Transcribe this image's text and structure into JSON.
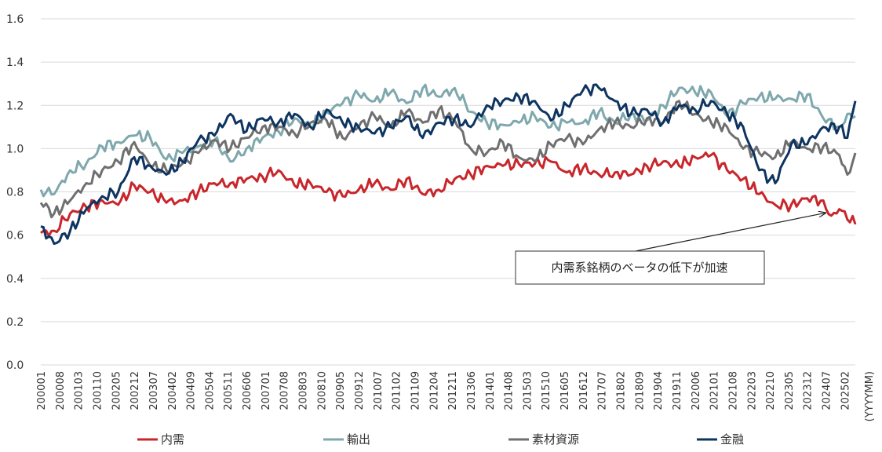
{
  "chart_data": {
    "type": "line",
    "title": "",
    "xlabel": "",
    "ylabel": "",
    "x_unit": "(YYYYMM)",
    "ylim": [
      0,
      1.6
    ],
    "yticks": [
      0.0,
      0.2,
      0.4,
      0.6,
      0.8,
      1.0,
      1.2,
      1.4,
      1.6
    ],
    "ytick_labels": [
      "0.0",
      "0.2",
      "0.4",
      "0.6",
      "0.8",
      "1.0",
      "1.2",
      "1.4",
      "1.6"
    ],
    "grid": true,
    "legend_position": "bottom",
    "x_start": "200001",
    "x_end": "202506",
    "xtick_labels": [
      "200001",
      "200008",
      "200103",
      "200110",
      "200205",
      "200212",
      "200307",
      "200402",
      "200409",
      "200504",
      "200511",
      "200606",
      "200701",
      "200708",
      "200803",
      "200810",
      "200905",
      "200912",
      "201007",
      "201102",
      "201109",
      "201204",
      "201211",
      "201306",
      "201401",
      "201408",
      "201503",
      "201510",
      "201605",
      "201612",
      "201707",
      "201802",
      "201809",
      "201904",
      "201911",
      "202006",
      "202101",
      "202108",
      "202203",
      "202210",
      "202305",
      "202312",
      "202407",
      "202502"
    ],
    "annotation": {
      "text": "内需系銘柄のベータの低下が加速",
      "target_x": "202408",
      "target_y": 0.71
    },
    "series": [
      {
        "name": "内需",
        "color": "#c8262b",
        "points": [
          [
            "200001",
            0.61
          ],
          [
            "200006",
            0.62
          ],
          [
            "200012",
            0.7
          ],
          [
            "200106",
            0.73
          ],
          [
            "200112",
            0.76
          ],
          [
            "200206",
            0.74
          ],
          [
            "200212",
            0.83
          ],
          [
            "200306",
            0.8
          ],
          [
            "200312",
            0.75
          ],
          [
            "200406",
            0.76
          ],
          [
            "200412",
            0.8
          ],
          [
            "200506",
            0.84
          ],
          [
            "200512",
            0.84
          ],
          [
            "200606",
            0.86
          ],
          [
            "200612",
            0.87
          ],
          [
            "200706",
            0.9
          ],
          [
            "200712",
            0.83
          ],
          [
            "200806",
            0.84
          ],
          [
            "200812",
            0.8
          ],
          [
            "200906",
            0.78
          ],
          [
            "200912",
            0.81
          ],
          [
            "201006",
            0.84
          ],
          [
            "201012",
            0.81
          ],
          [
            "201106",
            0.86
          ],
          [
            "201112",
            0.79
          ],
          [
            "201206",
            0.81
          ],
          [
            "201212",
            0.86
          ],
          [
            "201306",
            0.88
          ],
          [
            "201312",
            0.92
          ],
          [
            "201406",
            0.92
          ],
          [
            "201412",
            0.93
          ],
          [
            "201506",
            0.93
          ],
          [
            "201512",
            0.94
          ],
          [
            "201606",
            0.89
          ],
          [
            "201612",
            0.91
          ],
          [
            "201706",
            0.88
          ],
          [
            "201712",
            0.89
          ],
          [
            "201806",
            0.88
          ],
          [
            "201812",
            0.92
          ],
          [
            "201906",
            0.94
          ],
          [
            "201912",
            0.92
          ],
          [
            "202006",
            0.96
          ],
          [
            "202012",
            0.97
          ],
          [
            "202106",
            0.9
          ],
          [
            "202112",
            0.86
          ],
          [
            "202206",
            0.79
          ],
          [
            "202212",
            0.74
          ],
          [
            "202306",
            0.74
          ],
          [
            "202312",
            0.77
          ],
          [
            "202406",
            0.76
          ],
          [
            "202409",
            0.69
          ],
          [
            "202412",
            0.72
          ],
          [
            "202506",
            0.65
          ]
        ]
      },
      {
        "name": "輸出",
        "color": "#7fa8ad",
        "points": [
          [
            "200001",
            0.81
          ],
          [
            "200006",
            0.79
          ],
          [
            "200012",
            0.9
          ],
          [
            "200106",
            0.93
          ],
          [
            "200112",
            1.01
          ],
          [
            "200206",
            1.03
          ],
          [
            "200212",
            1.06
          ],
          [
            "200306",
            1.05
          ],
          [
            "200312",
            0.95
          ],
          [
            "200406",
            0.98
          ],
          [
            "200412",
            1.01
          ],
          [
            "200506",
            1.04
          ],
          [
            "200512",
            0.94
          ],
          [
            "200606",
            1.0
          ],
          [
            "200612",
            1.05
          ],
          [
            "200706",
            1.08
          ],
          [
            "200712",
            1.14
          ],
          [
            "200806",
            1.1
          ],
          [
            "200812",
            1.17
          ],
          [
            "200906",
            1.21
          ],
          [
            "200912",
            1.25
          ],
          [
            "201006",
            1.22
          ],
          [
            "201012",
            1.26
          ],
          [
            "201106",
            1.21
          ],
          [
            "201112",
            1.28
          ],
          [
            "201206",
            1.24
          ],
          [
            "201212",
            1.28
          ],
          [
            "201306",
            1.17
          ],
          [
            "201312",
            1.12
          ],
          [
            "201406",
            1.11
          ],
          [
            "201412",
            1.12
          ],
          [
            "201506",
            1.15
          ],
          [
            "201512",
            1.1
          ],
          [
            "201606",
            1.12
          ],
          [
            "201612",
            1.12
          ],
          [
            "201706",
            1.17
          ],
          [
            "201712",
            1.12
          ],
          [
            "201806",
            1.16
          ],
          [
            "201812",
            1.13
          ],
          [
            "201906",
            1.2
          ],
          [
            "201912",
            1.28
          ],
          [
            "202006",
            1.26
          ],
          [
            "202012",
            1.26
          ],
          [
            "202106",
            1.15
          ],
          [
            "202112",
            1.21
          ],
          [
            "202206",
            1.24
          ],
          [
            "202212",
            1.23
          ],
          [
            "202306",
            1.23
          ],
          [
            "202312",
            1.25
          ],
          [
            "202406",
            1.14
          ],
          [
            "202412",
            1.1
          ],
          [
            "202503",
            1.16
          ],
          [
            "202506",
            1.15
          ]
        ]
      },
      {
        "name": "素材資源",
        "color": "#6f6f6f",
        "points": [
          [
            "200001",
            0.75
          ],
          [
            "200006",
            0.7
          ],
          [
            "200012",
            0.76
          ],
          [
            "200106",
            0.84
          ],
          [
            "200112",
            0.9
          ],
          [
            "200206",
            0.94
          ],
          [
            "200212",
            1.03
          ],
          [
            "200306",
            0.92
          ],
          [
            "200312",
            0.9
          ],
          [
            "200406",
            0.93
          ],
          [
            "200412",
            0.98
          ],
          [
            "200506",
            1.04
          ],
          [
            "200512",
            1.0
          ],
          [
            "200606",
            1.05
          ],
          [
            "200612",
            1.1
          ],
          [
            "200706",
            1.1
          ],
          [
            "200712",
            1.07
          ],
          [
            "200806",
            1.12
          ],
          [
            "200812",
            1.13
          ],
          [
            "200906",
            1.05
          ],
          [
            "200912",
            1.1
          ],
          [
            "201006",
            1.15
          ],
          [
            "201012",
            1.1
          ],
          [
            "201106",
            1.17
          ],
          [
            "201112",
            1.12
          ],
          [
            "201206",
            1.18
          ],
          [
            "201212",
            1.13
          ],
          [
            "201306",
            1.0
          ],
          [
            "201312",
            0.98
          ],
          [
            "201406",
            1.03
          ],
          [
            "201412",
            0.96
          ],
          [
            "201506",
            0.94
          ],
          [
            "201512",
            1.02
          ],
          [
            "201606",
            1.05
          ],
          [
            "201612",
            1.02
          ],
          [
            "201706",
            1.09
          ],
          [
            "201712",
            1.12
          ],
          [
            "201806",
            1.1
          ],
          [
            "201812",
            1.14
          ],
          [
            "201906",
            1.12
          ],
          [
            "201912",
            1.22
          ],
          [
            "202006",
            1.16
          ],
          [
            "202012",
            1.12
          ],
          [
            "202106",
            1.1
          ],
          [
            "202112",
            1.0
          ],
          [
            "202206",
            0.98
          ],
          [
            "202212",
            0.96
          ],
          [
            "202306",
            1.03
          ],
          [
            "202312",
            1.0
          ],
          [
            "202406",
            1.01
          ],
          [
            "202412",
            0.97
          ],
          [
            "202503",
            0.88
          ],
          [
            "202506",
            0.98
          ]
        ]
      },
      {
        "name": "金融",
        "color": "#0e3460",
        "points": [
          [
            "200001",
            0.64
          ],
          [
            "200006",
            0.56
          ],
          [
            "200012",
            0.62
          ],
          [
            "200106",
            0.72
          ],
          [
            "200112",
            0.78
          ],
          [
            "200206",
            0.8
          ],
          [
            "200212",
            0.96
          ],
          [
            "200306",
            0.92
          ],
          [
            "200312",
            0.88
          ],
          [
            "200406",
            0.94
          ],
          [
            "200412",
            1.04
          ],
          [
            "200506",
            1.06
          ],
          [
            "200512",
            1.16
          ],
          [
            "200606",
            1.08
          ],
          [
            "200612",
            1.14
          ],
          [
            "200706",
            1.12
          ],
          [
            "200712",
            1.16
          ],
          [
            "200806",
            1.1
          ],
          [
            "200812",
            1.18
          ],
          [
            "200906",
            1.12
          ],
          [
            "200912",
            1.1
          ],
          [
            "201006",
            1.07
          ],
          [
            "201012",
            1.1
          ],
          [
            "201106",
            1.15
          ],
          [
            "201112",
            1.05
          ],
          [
            "201206",
            1.12
          ],
          [
            "201212",
            1.14
          ],
          [
            "201306",
            1.1
          ],
          [
            "201312",
            1.2
          ],
          [
            "201406",
            1.22
          ],
          [
            "201412",
            1.24
          ],
          [
            "201506",
            1.22
          ],
          [
            "201512",
            1.13
          ],
          [
            "201606",
            1.2
          ],
          [
            "201612",
            1.27
          ],
          [
            "201706",
            1.28
          ],
          [
            "201712",
            1.22
          ],
          [
            "201806",
            1.16
          ],
          [
            "201812",
            1.18
          ],
          [
            "201906",
            1.12
          ],
          [
            "201912",
            1.2
          ],
          [
            "202006",
            1.18
          ],
          [
            "202012",
            1.22
          ],
          [
            "202106",
            1.16
          ],
          [
            "202112",
            1.1
          ],
          [
            "202206",
            0.9
          ],
          [
            "202212",
            0.84
          ],
          [
            "202306",
            1.02
          ],
          [
            "202312",
            1.02
          ],
          [
            "202406",
            1.1
          ],
          [
            "202412",
            1.1
          ],
          [
            "202503",
            1.05
          ],
          [
            "202506",
            1.22
          ]
        ]
      }
    ]
  }
}
